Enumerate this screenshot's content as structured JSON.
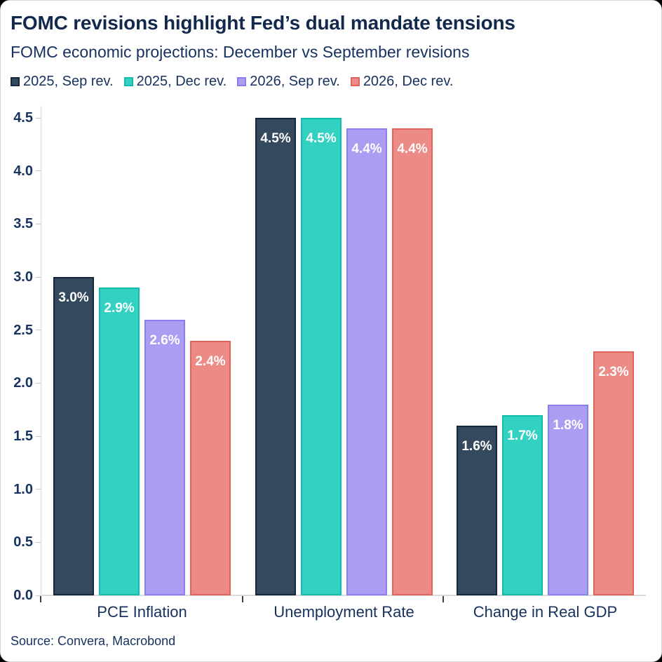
{
  "header": {
    "title": "FOMC revisions highlight Fed’s dual mandate tensions",
    "subtitle": "FOMC economic projections: December vs September revisions"
  },
  "footer": {
    "source": "Source: Convera, Macrobond"
  },
  "chart_data": {
    "type": "bar",
    "title": "FOMC revisions highlight Fed’s dual mandate tensions",
    "subtitle": "FOMC economic projections: December vs September revisions",
    "categories": [
      "PCE Inflation",
      "Unemployment Rate",
      "Change in Real GDP"
    ],
    "series": [
      {
        "name": "2025, Sep rev.",
        "values": [
          3.0,
          4.5,
          1.6
        ],
        "labels": [
          "3.0%",
          "4.5%",
          "1.6%"
        ],
        "fill": "#34495e",
        "border": "#15273c"
      },
      {
        "name": "2025, Dec rev.",
        "values": [
          2.9,
          4.5,
          1.7
        ],
        "labels": [
          "2.9%",
          "4.5%",
          "1.7%"
        ],
        "fill": "#33d1c1",
        "border": "#10bdab"
      },
      {
        "name": "2026, Sep rev.",
        "values": [
          2.6,
          4.4,
          1.8
        ],
        "labels": [
          "2.6%",
          "4.4%",
          "1.8%"
        ],
        "fill": "#ab9df2",
        "border": "#8b7eec"
      },
      {
        "name": "2026, Dec rev.",
        "values": [
          2.4,
          4.4,
          2.3
        ],
        "labels": [
          "2.4%",
          "4.4%",
          "2.3%"
        ],
        "fill": "#ec8a85",
        "border": "#e2625e"
      }
    ],
    "ylim": [
      0,
      4.5
    ],
    "ytick_step": 0.5,
    "ytick_labels": [
      "0.0",
      "0.5",
      "1.0",
      "1.5",
      "2.0",
      "2.5",
      "3.0",
      "3.5",
      "4.0",
      "4.5"
    ],
    "grid": false,
    "legend_position": "top",
    "value_label_color": "#ffffff",
    "axis_line_color": "#dadada",
    "text_color": "#16315d",
    "title_color": "#12294d"
  }
}
